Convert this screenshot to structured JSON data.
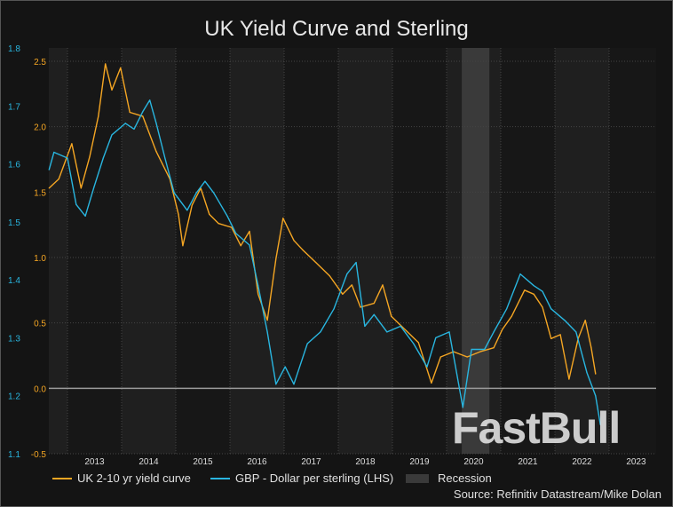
{
  "chart_data": {
    "type": "line",
    "title": "UK Yield Curve and Sterling",
    "x_ticks": [
      "2013",
      "2014",
      "2015",
      "2016",
      "2017",
      "2018",
      "2019",
      "2020",
      "2021",
      "2022",
      "2023"
    ],
    "xlim": [
      2012.66,
      2023.7
    ],
    "y_right_orange": {
      "ticks": [
        "2.5",
        "2.0",
        "1.5",
        "1.0",
        "0.5",
        "0.0",
        "-0.5"
      ],
      "ylim": [
        -0.5,
        2.5
      ],
      "color": "#f5a623"
    },
    "y_left_blue": {
      "ticks": [
        "1.8",
        "1.7",
        "1.6",
        "1.5",
        "1.4",
        "1.3",
        "1.2",
        "1.1"
      ],
      "ylim": [
        1.1,
        1.8
      ],
      "color": "#29b6e0"
    },
    "grid": true,
    "series": [
      {
        "name": "UK 2-10 yr yield curve",
        "axis": "orange",
        "color": "#f5a623",
        "x": [
          2012.66,
          2012.84,
          2013.08,
          2013.25,
          2013.41,
          2013.57,
          2013.7,
          2013.82,
          2013.98,
          2014.15,
          2014.39,
          2014.64,
          2014.89,
          2015.05,
          2015.13,
          2015.3,
          2015.46,
          2015.62,
          2015.79,
          2016.03,
          2016.2,
          2016.36,
          2016.52,
          2016.69,
          2016.85,
          2016.98,
          2017.18,
          2017.34,
          2017.59,
          2017.84,
          2018.08,
          2018.25,
          2018.41,
          2018.66,
          2018.82,
          2018.98,
          2019.23,
          2019.48,
          2019.72,
          2019.89,
          2020.13,
          2020.38,
          2020.62,
          2020.87,
          2021.03,
          2021.2,
          2021.44,
          2021.61,
          2021.77,
          2021.93,
          2022.1,
          2022.26,
          2022.43,
          2022.56,
          2022.67,
          2022.75
        ],
        "values": [
          1.53,
          1.6,
          1.87,
          1.53,
          1.77,
          2.08,
          2.48,
          2.28,
          2.45,
          2.11,
          2.08,
          1.81,
          1.6,
          1.33,
          1.09,
          1.4,
          1.53,
          1.33,
          1.26,
          1.23,
          1.09,
          1.2,
          0.72,
          0.52,
          0.99,
          1.3,
          1.13,
          1.06,
          0.96,
          0.86,
          0.72,
          0.79,
          0.62,
          0.65,
          0.79,
          0.55,
          0.45,
          0.35,
          0.04,
          0.24,
          0.28,
          0.24,
          0.28,
          0.31,
          0.45,
          0.55,
          0.75,
          0.72,
          0.62,
          0.38,
          0.41,
          0.07,
          0.38,
          0.52,
          0.31,
          0.11
        ]
      },
      {
        "name": "GBP - Dollar per sterling (LHS)",
        "axis": "blue",
        "color": "#29b6e0",
        "x": [
          2012.66,
          2012.75,
          2013.0,
          2013.16,
          2013.33,
          2013.49,
          2013.66,
          2013.82,
          2014.07,
          2014.23,
          2014.39,
          2014.52,
          2014.64,
          2014.8,
          2014.97,
          2015.21,
          2015.38,
          2015.54,
          2015.7,
          2015.95,
          2016.11,
          2016.36,
          2016.52,
          2016.69,
          2016.85,
          2017.02,
          2017.18,
          2017.43,
          2017.67,
          2017.92,
          2018.16,
          2018.33,
          2018.49,
          2018.66,
          2018.9,
          2019.15,
          2019.39,
          2019.64,
          2019.8,
          2020.05,
          2020.3,
          2020.46,
          2020.7,
          2020.87,
          2021.11,
          2021.36,
          2021.61,
          2021.77,
          2021.93,
          2022.18,
          2022.39,
          2022.59,
          2022.75,
          2022.84
        ],
        "values": [
          1.59,
          1.62,
          1.61,
          1.53,
          1.51,
          1.56,
          1.61,
          1.65,
          1.67,
          1.66,
          1.69,
          1.71,
          1.67,
          1.61,
          1.55,
          1.52,
          1.55,
          1.57,
          1.55,
          1.51,
          1.48,
          1.46,
          1.39,
          1.31,
          1.22,
          1.25,
          1.22,
          1.29,
          1.31,
          1.35,
          1.41,
          1.43,
          1.32,
          1.34,
          1.31,
          1.32,
          1.29,
          1.25,
          1.3,
          1.31,
          1.18,
          1.28,
          1.28,
          1.31,
          1.35,
          1.41,
          1.39,
          1.38,
          1.35,
          1.33,
          1.31,
          1.24,
          1.2,
          1.15
        ]
      }
    ],
    "recession": {
      "name": "Recession",
      "x": [
        2020.28,
        2020.79
      ],
      "color": "#3a3a3a"
    },
    "legend_placement": "bottom",
    "source": "Source: Refinitiv Datastream/Mike Dolan"
  },
  "watermark": "FastBull"
}
